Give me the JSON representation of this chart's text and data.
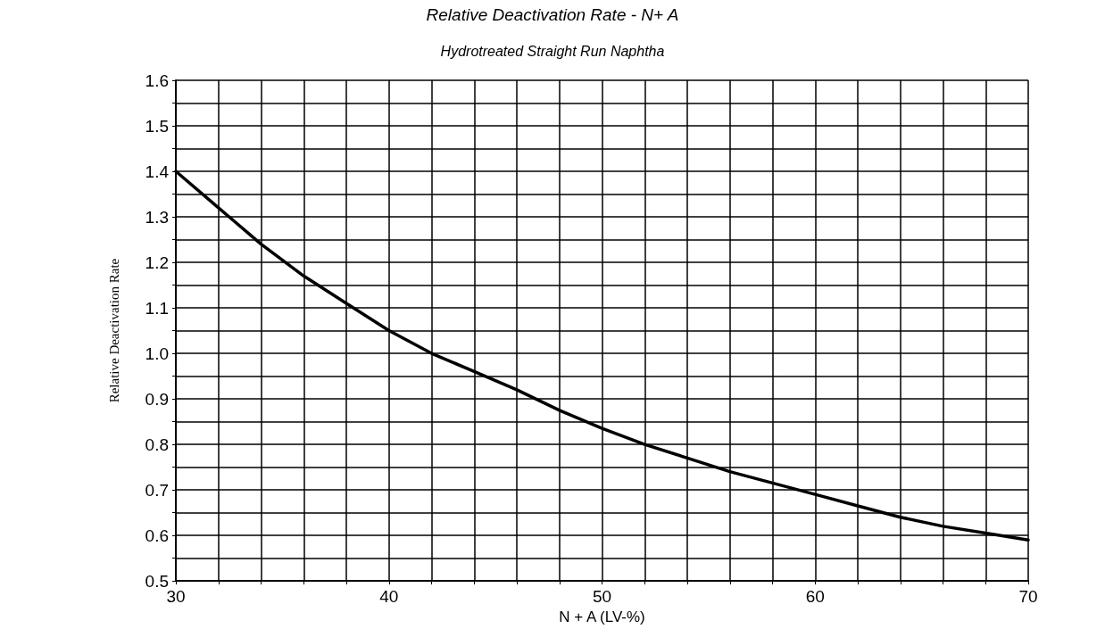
{
  "chart_data": {
    "type": "line",
    "title": "Relative Deactivation Rate - N+ A",
    "subtitle": "Hydrotreated Straight Run Naphtha",
    "xlabel": "N + A (LV-%)",
    "ylabel": "Relative Deactivation Rate",
    "series": [
      {
        "color": "#000000",
        "x": [
          30,
          32,
          34,
          36,
          38,
          40,
          42,
          44,
          46,
          48,
          50,
          52,
          54,
          56,
          58,
          60,
          62,
          64,
          66,
          68,
          70
        ],
        "values": [
          1.4,
          1.32,
          1.24,
          1.17,
          1.11,
          1.05,
          1.0,
          0.96,
          0.92,
          0.875,
          0.835,
          0.8,
          0.77,
          0.74,
          0.715,
          0.69,
          0.665,
          0.64,
          0.62,
          0.605,
          0.59
        ]
      }
    ],
    "xlim": [
      30,
      70
    ],
    "ylim": [
      0.5,
      1.6
    ],
    "xticks": [
      30,
      {
        "value": 32,
        "label": null
      },
      {
        "value": 34,
        "label": null
      },
      {
        "value": 36,
        "label": null
      },
      {
        "value": 38,
        "label": null
      },
      40,
      {
        "value": 42,
        "label": null
      },
      {
        "value": 44,
        "label": null
      },
      {
        "value": 46,
        "label": null
      },
      {
        "value": 48,
        "label": null
      },
      50,
      {
        "value": 52,
        "label": null
      },
      {
        "value": 54,
        "label": null
      },
      {
        "value": 56,
        "label": null
      },
      {
        "value": 58,
        "label": null
      },
      60,
      {
        "value": 62,
        "label": null
      },
      {
        "value": 64,
        "label": null
      },
      {
        "value": 66,
        "label": null
      },
      {
        "value": 68,
        "label": null
      },
      70
    ],
    "yticks": [
      0.5,
      {
        "value": 0.55,
        "label": null
      },
      0.6,
      {
        "value": 0.65,
        "label": null
      },
      0.7,
      {
        "value": 0.75,
        "label": null
      },
      0.8,
      {
        "value": 0.85,
        "label": null
      },
      0.9,
      {
        "value": 0.95,
        "label": null
      },
      {
        "value": 1,
        "label": "1.0"
      },
      {
        "value": 1.05,
        "label": null
      },
      1.1,
      {
        "value": 1.15,
        "label": null
      },
      1.2,
      {
        "value": 1.25,
        "label": null
      },
      1.3,
      {
        "value": 1.35,
        "label": null
      },
      1.4,
      {
        "value": 1.45,
        "label": null
      },
      1.5,
      {
        "value": 1.55,
        "label": null
      },
      1.6
    ],
    "grid": true,
    "marker": "none",
    "line_style": "solid"
  }
}
